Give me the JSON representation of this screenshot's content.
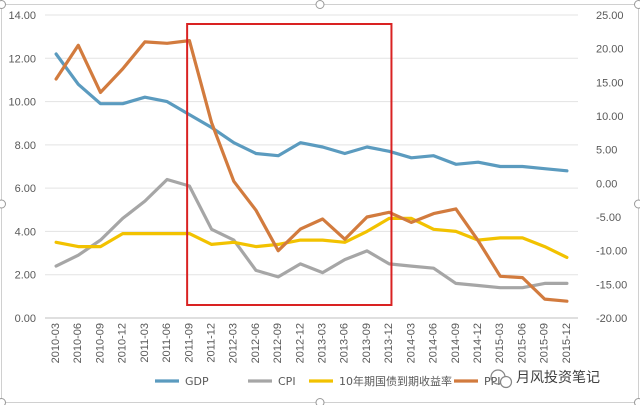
{
  "chart_data": {
    "type": "line",
    "categories": [
      "2010-03",
      "2010-06",
      "2010-09",
      "2010-12",
      "2011-03",
      "2011-06",
      "2011-09",
      "2011-12",
      "2012-03",
      "2012-06",
      "2012-09",
      "2012-12",
      "2013-03",
      "2013-06",
      "2013-09",
      "2013-12",
      "2014-03",
      "2014-06",
      "2014-09",
      "2014-12",
      "2015-03",
      "2015-06",
      "2015-09",
      "2015-12"
    ],
    "left_axis": {
      "ylim": [
        0,
        14
      ],
      "ticks": [
        "0.00",
        "2.00",
        "4.00",
        "6.00",
        "8.00",
        "10.00",
        "12.00",
        "14.00"
      ]
    },
    "right_axis": {
      "ylim": [
        -20,
        25
      ],
      "ticks": [
        "-20.00",
        "-15.00",
        "-10.00",
        "-5.00",
        "0.00",
        "5.00",
        "10.00",
        "15.00",
        "20.00",
        "25.00"
      ]
    },
    "series": [
      {
        "name": "GDP",
        "axis": "left",
        "color": "#5b9bbf",
        "values": [
          12.2,
          10.8,
          9.9,
          9.9,
          10.2,
          10.0,
          9.4,
          8.8,
          8.1,
          7.6,
          7.5,
          8.1,
          7.9,
          7.6,
          7.9,
          7.7,
          7.4,
          7.5,
          7.1,
          7.2,
          7.0,
          7.0,
          6.9,
          6.8
        ]
      },
      {
        "name": "CPI",
        "axis": "left",
        "color": "#a6a6a6",
        "values": [
          2.4,
          2.9,
          3.6,
          4.6,
          5.4,
          6.4,
          6.1,
          4.1,
          3.6,
          2.2,
          1.9,
          2.5,
          2.1,
          2.7,
          3.1,
          2.5,
          2.4,
          2.3,
          1.6,
          1.5,
          1.4,
          1.4,
          1.6,
          1.6
        ]
      },
      {
        "name": "10年期国债到期收益率",
        "axis": "left",
        "color": "#f2c200",
        "values": [
          3.5,
          3.3,
          3.3,
          3.9,
          3.9,
          3.9,
          3.9,
          3.4,
          3.5,
          3.3,
          3.4,
          3.6,
          3.6,
          3.5,
          4.0,
          4.6,
          4.6,
          4.1,
          4.0,
          3.6,
          3.7,
          3.7,
          3.3,
          2.8
        ]
      },
      {
        "name": "PPI",
        "axis": "right",
        "color": "#d27b3e",
        "values": [
          15.5,
          20.5,
          13.5,
          17.0,
          21.0,
          20.8,
          21.2,
          9.0,
          0.3,
          -4.0,
          -10.0,
          -6.8,
          -5.3,
          -8.3,
          -5.0,
          -4.3,
          -5.8,
          -4.5,
          -3.8,
          -8.5,
          -13.8,
          -14.0,
          -17.2,
          -17.5
        ]
      }
    ],
    "highlight": {
      "from_category": "2011-09",
      "to_category": "2013-12",
      "color": "#d92222"
    },
    "legend_position": "bottom",
    "grid": "horizontal"
  },
  "watermark": {
    "text": "月风投资笔记"
  }
}
